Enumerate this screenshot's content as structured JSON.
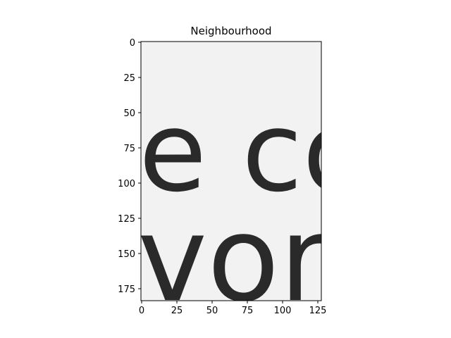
{
  "chart_data": {
    "type": "image",
    "title": "Neighbourhood",
    "xlim": [
      -0.5,
      127.5
    ],
    "ylim": [
      183.5,
      -0.5
    ],
    "xticks": [
      0,
      25,
      50,
      75,
      100,
      125
    ],
    "yticks": [
      0,
      25,
      50,
      75,
      100,
      125,
      150,
      175
    ],
    "colormap": "gray",
    "image_text_fragments": [
      {
        "text": "e cos",
        "baseline_row": 105,
        "x_start": -2,
        "font_rows": 58
      },
      {
        "text": "vorke",
        "baseline_row": 183,
        "x_start": -3,
        "font_rows": 62
      }
    ],
    "background_color": "#f2f2f2",
    "ink_color": "#2a2a2a"
  }
}
